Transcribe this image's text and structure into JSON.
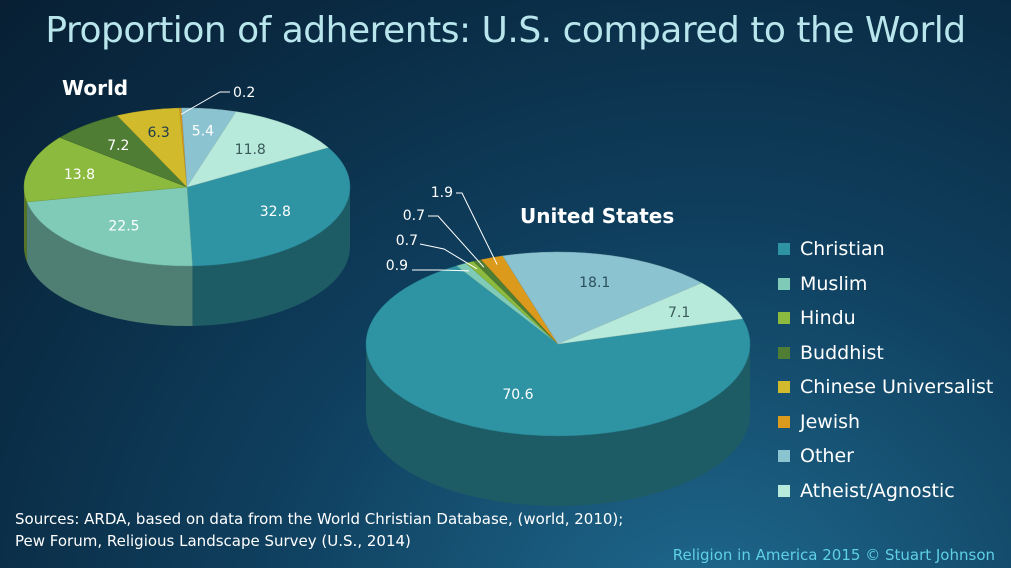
{
  "title": "Proportion of adherents: U.S. compared to the World",
  "chart_data": [
    {
      "type": "pie",
      "title": "World",
      "slices": [
        {
          "label": "Christian",
          "value": 32.8,
          "display": "32.8"
        },
        {
          "label": "Muslim",
          "value": 22.5,
          "display": "22.5"
        },
        {
          "label": "Hindu",
          "value": 13.8,
          "display": "13.8"
        },
        {
          "label": "Buddhist",
          "value": 7.2,
          "display": "7.2"
        },
        {
          "label": "Chinese Universalist",
          "value": 6.3,
          "display": "6.3"
        },
        {
          "label": "Jewish",
          "value": 0.2,
          "display": "0.2"
        },
        {
          "label": "Other",
          "value": 5.4,
          "display": "5.4"
        },
        {
          "label": "Atheist/Agnostic",
          "value": 11.8,
          "display": "11.8"
        }
      ]
    },
    {
      "type": "pie",
      "title": "United States",
      "slices": [
        {
          "label": "Christian",
          "value": 70.6,
          "display": "70.6"
        },
        {
          "label": "Muslim",
          "value": 0.9,
          "display": "0.9"
        },
        {
          "label": "Hindu",
          "value": 0.7,
          "display": "0.7"
        },
        {
          "label": "Buddhist",
          "value": 0.7,
          "display": "0.7"
        },
        {
          "label": "Chinese Universalist",
          "value": 0,
          "display": ""
        },
        {
          "label": "Jewish",
          "value": 1.9,
          "display": "1.9"
        },
        {
          "label": "Other",
          "value": 18.1,
          "display": "18.1"
        },
        {
          "label": "Atheist/Agnostic",
          "value": 7.1,
          "display": "7.1"
        }
      ]
    }
  ],
  "legend": [
    {
      "label": "Christian",
      "color": "#2e93a3"
    },
    {
      "label": "Muslim",
      "color": "#7fcbb8"
    },
    {
      "label": "Hindu",
      "color": "#8cba3f"
    },
    {
      "label": "Buddhist",
      "color": "#4e7d33"
    },
    {
      "label": "Chinese Universalist",
      "color": "#d1bb2c"
    },
    {
      "label": "Jewish",
      "color": "#dc9a1c"
    },
    {
      "label": "Other",
      "color": "#8cc3d0"
    },
    {
      "label": "Atheist/Agnostic",
      "color": "#b7eadb"
    }
  ],
  "sources": {
    "line1": "Sources: ARDA, based on data from the World Christian Database, (world, 2010);",
    "line2": "Pew Forum, Religious Landscape Survey (U.S., 2014)"
  },
  "credit": "Religion in America 2015 © Stuart Johnson"
}
